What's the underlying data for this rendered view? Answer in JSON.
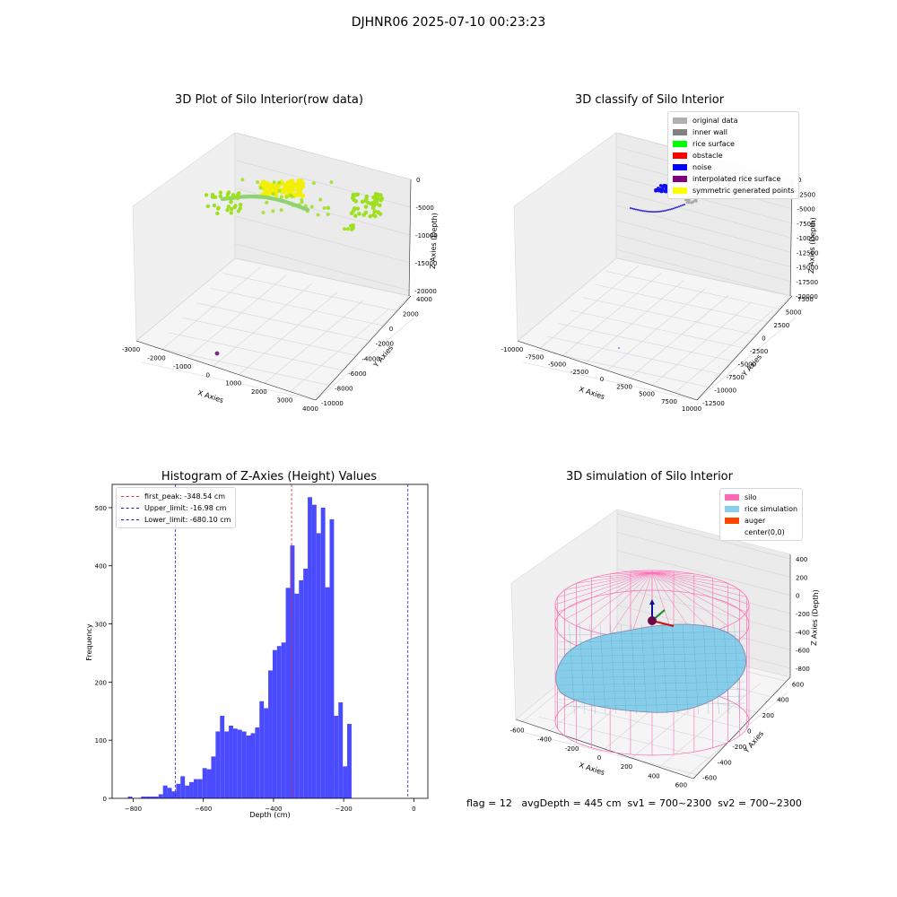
{
  "suptitle": "DJHNR06 2025-07-10 00:23:23",
  "status_text": "flag = 12   avgDepth = 445 cm  sv1 = 700~2300  sv2 = 700~2300",
  "chart_data": [
    {
      "type": "scatter",
      "title": "3D Plot of Silo Interior(row data)",
      "xlabel": "X Axies",
      "ylabel": "Y Axies",
      "zlabel": "Z Axies (Depth)",
      "x_ticks": [
        -3000,
        -2000,
        -1000,
        0,
        1000,
        2000,
        3000,
        4000
      ],
      "y_ticks": [
        -10000,
        -8000,
        -6000,
        -4000,
        -2000,
        0,
        2000,
        4000
      ],
      "z_ticks": [
        0,
        -5000,
        -10000,
        -15000,
        -20000
      ],
      "xlim": [
        -3000,
        4000
      ],
      "ylim": [
        -10000,
        4000
      ],
      "zlim": [
        -21000,
        0
      ],
      "colors": [
        "#f2ee00",
        "#9ee020",
        "#8fd36f",
        "#7b2d80"
      ],
      "grid": true
    },
    {
      "type": "scatter",
      "title": "3D classify of Silo Interior",
      "xlabel": "X Axies",
      "ylabel": "Y Axies",
      "zlabel": "Z Axies (Depth)",
      "x_ticks": [
        -10000,
        -7500,
        -5000,
        -2500,
        0,
        2500,
        5000,
        7500,
        10000
      ],
      "y_ticks": [
        -12500,
        -10000,
        -7500,
        -5000,
        -2500,
        0,
        2500,
        5000,
        7500
      ],
      "z_ticks": [
        0,
        -2500,
        -5000,
        -7500,
        -10000,
        -12500,
        -15000,
        -17500,
        -20000
      ],
      "xlim": [
        -10000,
        10000
      ],
      "ylim": [
        -12500,
        7500
      ],
      "zlim": [
        -20000,
        0
      ],
      "legend_position": "top-right",
      "legend": [
        {
          "label": "original data",
          "color": "#b0b0b0"
        },
        {
          "label": "inner wall",
          "color": "#808080"
        },
        {
          "label": "rice surface",
          "color": "#00ff00"
        },
        {
          "label": "obstacle",
          "color": "#ff0000"
        },
        {
          "label": "noise",
          "color": "#0000ff"
        },
        {
          "label": "interpolated rice surface",
          "color": "#800080"
        },
        {
          "label": "symmetric generated points",
          "color": "#ffff00"
        }
      ],
      "grid": true
    },
    {
      "type": "bar",
      "title": "Histogram of Z-Axies (Height) Values",
      "xlabel": "Depth (cm)",
      "ylabel": "Frequency",
      "xlim": [
        -860,
        40
      ],
      "ylim": [
        0,
        540
      ],
      "x_ticks": [
        -800,
        -600,
        -400,
        -200,
        0
      ],
      "y_ticks": [
        0,
        100,
        200,
        300,
        400,
        500
      ],
      "bin_start": -815,
      "bin_width": 12.5,
      "values": [
        3,
        0,
        0,
        3,
        3,
        3,
        3,
        7,
        22,
        18,
        12,
        25,
        38,
        22,
        28,
        33,
        33,
        52,
        50,
        72,
        115,
        142,
        115,
        125,
        120,
        118,
        115,
        108,
        112,
        122,
        167,
        155,
        220,
        255,
        262,
        268,
        362,
        435,
        352,
        375,
        395,
        518,
        505,
        456,
        500,
        363,
        480,
        142,
        165,
        55,
        128
      ],
      "bar_color": "#4a4aff",
      "vlines": [
        {
          "label": "first_peak: -348.54 cm",
          "x": -348.54,
          "color": "#e03030"
        },
        {
          "label": "Upper_limit: -16.98 cm",
          "x": -16.98,
          "color": "#2020c0"
        },
        {
          "label": "Lower_limit: -680.10 cm",
          "x": -680.1,
          "color": "#2020c0"
        }
      ],
      "legend_position": "top-left"
    },
    {
      "type": "surface",
      "title": "3D simulation of Silo Interior",
      "xlabel": "X Axies",
      "ylabel": "Y Axies",
      "zlabel": "Z Axies (Depth)",
      "x_ticks": [
        -600,
        -400,
        -200,
        0,
        200,
        400,
        600
      ],
      "y_ticks": [
        -600,
        -400,
        -200,
        0,
        200,
        400,
        600
      ],
      "z_ticks": [
        400,
        200,
        0,
        -200,
        -400,
        -600,
        -800
      ],
      "xlim": [
        -650,
        650
      ],
      "ylim": [
        -650,
        650
      ],
      "zlim": [
        -900,
        450
      ],
      "legend_position": "top-right",
      "legend": [
        {
          "label": "silo",
          "color": "#ff69b4"
        },
        {
          "label": "rice simulation",
          "color": "#87ceeb"
        },
        {
          "label": "auger",
          "color": "#ff4500"
        },
        {
          "label": "center(0,0)",
          "color": ""
        }
      ],
      "grid": true
    }
  ]
}
